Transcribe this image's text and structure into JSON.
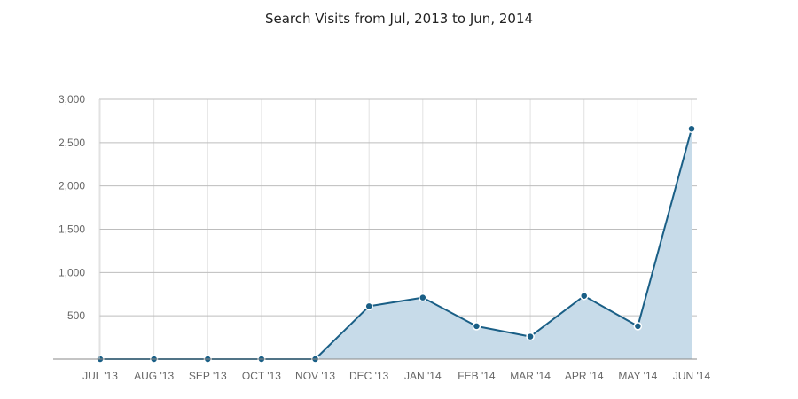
{
  "chart_data": {
    "type": "area",
    "title": "Search Visits from Jul, 2013 to Jun, 2014",
    "categories": [
      "JUL '13",
      "AUG '13",
      "SEP '13",
      "OCT '13",
      "NOV '13",
      "DEC '13",
      "JAN '14",
      "FEB '14",
      "MAR '14",
      "APR '14",
      "MAY '14",
      "JUN '14"
    ],
    "series": [
      {
        "values": [
          0,
          0,
          0,
          0,
          0,
          610,
          710,
          380,
          260,
          730,
          380,
          2660
        ]
      }
    ],
    "ylim": [
      0,
      3000
    ],
    "yticks": [
      500,
      1000,
      1500,
      2000,
      2500,
      3000
    ],
    "ytick_labels": [
      "500",
      "1,000",
      "1,500",
      "2,000",
      "2,500",
      "3,000"
    ],
    "grid": true,
    "legend": "none",
    "colors": {
      "line": "#1a5f86",
      "area": "#c7dbe9",
      "marker": "#1a5f86",
      "grid": "#bdbdbd",
      "vgrid": "#e2e2e2",
      "axis": "#888888"
    }
  }
}
